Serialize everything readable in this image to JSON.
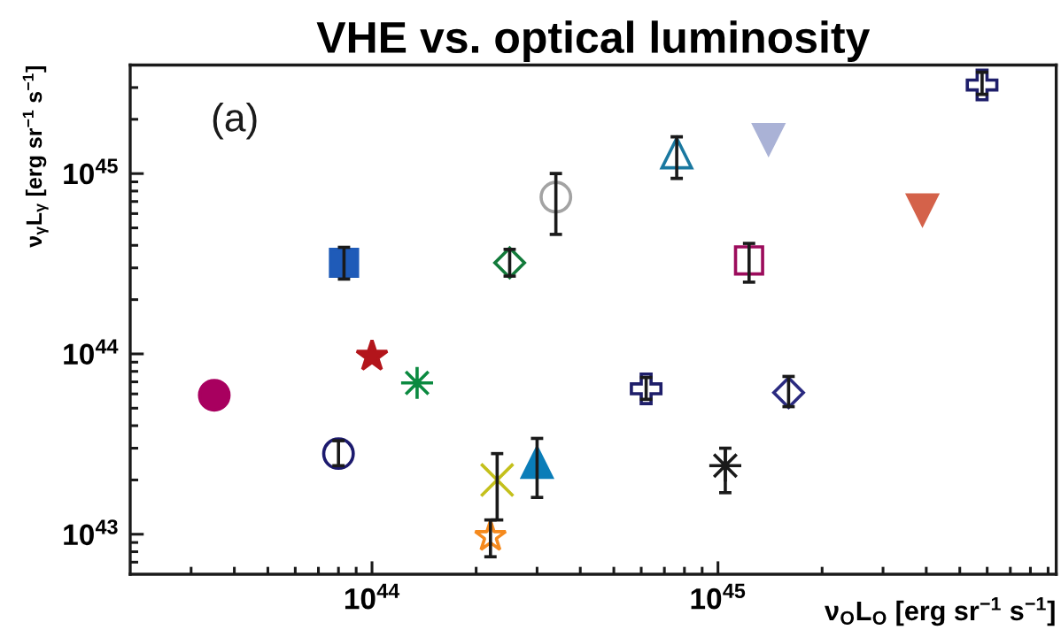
{
  "chart_data": {
    "type": "scatter",
    "title": "VHE vs. optical luminosity",
    "xlabel": "ν$_{O}$L$_{O}$ [erg sr$^{−1}$ s$^{−1}$]",
    "ylabel": "ν$_{γ}$L$_{γ}$ [erg sr$^{−1}$ s$^{−1}$]",
    "annotations": [
      "(a)"
    ],
    "log": "xy",
    "xlim": [
      2e+43,
      9.5e+45
    ],
    "ylim": [
      6e+42,
      4e+45
    ],
    "xticks": [
      {
        "value": 3e+43,
        "label": null
      },
      {
        "value": 4e+43,
        "label": null
      },
      {
        "value": 5e+43,
        "label": null
      },
      {
        "value": 6e+43,
        "label": null
      },
      {
        "value": 7e+43,
        "label": null
      },
      {
        "value": 8e+43,
        "label": null
      },
      {
        "value": 9e+43,
        "label": null
      },
      {
        "value": 1e+44,
        "label": "10$^{44}$"
      },
      {
        "value": 2e+44,
        "label": null
      },
      {
        "value": 3e+44,
        "label": null
      },
      {
        "value": 4e+44,
        "label": null
      },
      {
        "value": 5e+44,
        "label": null
      },
      {
        "value": 6e+44,
        "label": null
      },
      {
        "value": 7e+44,
        "label": null
      },
      {
        "value": 8e+44,
        "label": null
      },
      {
        "value": 9e+44,
        "label": null
      },
      {
        "value": 1e+45,
        "label": "10$^{45}$"
      },
      {
        "value": 2e+45,
        "label": null
      },
      {
        "value": 3e+45,
        "label": null
      },
      {
        "value": 4e+45,
        "label": null
      },
      {
        "value": 5e+45,
        "label": null
      },
      {
        "value": 6e+45,
        "label": null
      },
      {
        "value": 7e+45,
        "label": null
      },
      {
        "value": 8e+45,
        "label": null
      },
      {
        "value": 9e+45,
        "label": null
      }
    ],
    "yticks": [
      {
        "value": 7e+42,
        "label": null
      },
      {
        "value": 8e+42,
        "label": null
      },
      {
        "value": 9e+42,
        "label": null
      },
      {
        "value": 1e+43,
        "label": "10$^{43}$"
      },
      {
        "value": 2e+43,
        "label": null
      },
      {
        "value": 3e+43,
        "label": null
      },
      {
        "value": 4e+43,
        "label": null
      },
      {
        "value": 5e+43,
        "label": null
      },
      {
        "value": 6e+43,
        "label": null
      },
      {
        "value": 7e+43,
        "label": null
      },
      {
        "value": 8e+43,
        "label": null
      },
      {
        "value": 9e+43,
        "label": null
      },
      {
        "value": 1e+44,
        "label": "10$^{44}$"
      },
      {
        "value": 2e+44,
        "label": null
      },
      {
        "value": 3e+44,
        "label": null
      },
      {
        "value": 4e+44,
        "label": null
      },
      {
        "value": 5e+44,
        "label": null
      },
      {
        "value": 6e+44,
        "label": null
      },
      {
        "value": 7e+44,
        "label": null
      },
      {
        "value": 8e+44,
        "label": null
      },
      {
        "value": 9e+44,
        "label": null
      },
      {
        "value": 1e+45,
        "label": "10$^{45}$"
      },
      {
        "value": 2e+45,
        "label": null
      },
      {
        "value": 3e+45,
        "label": null
      }
    ],
    "series": [
      {
        "x": [
          3.5e+43
        ],
        "values": [
          5.9e+43
        ],
        "color": "#a8005f",
        "marker": "circle"
      },
      {
        "x": [
          8.3e+43
        ],
        "values": [
          3.2e+44
        ],
        "errors": [
          [
            2.6e+44,
            3.9e+44
          ]
        ],
        "color": "#1f5bb8",
        "marker": "square"
      },
      {
        "x": [
          1e+44
        ],
        "values": [
          9.7e+43
        ],
        "color": "#b3151b",
        "marker": "star"
      },
      {
        "x": [
          1.35e+44
        ],
        "values": [
          6.9e+43
        ],
        "color": "#0b8a40",
        "marker": "asterisk"
      },
      {
        "x": [
          8e+43
        ],
        "values": [
          2.8e+43
        ],
        "errors": [
          [
            2.4e+43,
            3.3e+43
          ]
        ],
        "color": "#1c1a6e",
        "marker": "circle-open"
      },
      {
        "x": [
          2.3e+44
        ],
        "values": [
          2e+43
        ],
        "errors": [
          [
            1.2e+43,
            2.8e+43
          ]
        ],
        "color": "#c4c01c",
        "marker": "x"
      },
      {
        "x": [
          3e+44
        ],
        "values": [
          2.5e+43
        ],
        "errors": [
          [
            1.6e+43,
            3.4e+43
          ]
        ],
        "color": "#0a7db8",
        "marker": "triangle-up"
      },
      {
        "x": [
          2.2e+44
        ],
        "values": [
          9.7e+42
        ],
        "errors": [
          [
            7.5e+42,
            1.2e+43
          ]
        ],
        "color": "#f58a1e",
        "marker": "star-open"
      },
      {
        "x": [
          2.5e+44
        ],
        "values": [
          3.2e+44
        ],
        "errors": [
          [
            2.7e+44,
            3.8e+44
          ]
        ],
        "color": "#127a3a",
        "marker": "diamond-open"
      },
      {
        "x": [
          3.4e+44
        ],
        "values": [
          7.4e+44
        ],
        "errors": [
          [
            4.6e+44,
            1e+45
          ]
        ],
        "color": "#a3a3a3",
        "marker": "circle-open"
      },
      {
        "x": [
          7.6e+44
        ],
        "values": [
          1.3e+45
        ],
        "errors": [
          [
            9.4e+44,
            1.6e+45
          ]
        ],
        "color": "#1a78a0",
        "marker": "triangle-up-open"
      },
      {
        "x": [
          1.4e+45
        ],
        "values": [
          1.55e+45
        ],
        "color": "#aab2d6",
        "marker": "triangle-down"
      },
      {
        "x": [
          1.23e+45
        ],
        "values": [
          3.3e+44
        ],
        "errors": [
          [
            2.5e+44,
            4.1e+44
          ]
        ],
        "color": "#9c0c5c",
        "marker": "square-open"
      },
      {
        "x": [
          3.9e+45
        ],
        "values": [
          6.3e+44
        ],
        "color": "#d4624a",
        "marker": "triangle-down"
      },
      {
        "x": [
          5.8e+45
        ],
        "values": [
          3.1e+45
        ],
        "errors": [
          [
            2.75e+45,
            3.65e+45
          ]
        ],
        "color": "#1e1e6a",
        "marker": "cross-open"
      },
      {
        "x": [
          6.2e+44
        ],
        "values": [
          6.4e+43
        ],
        "errors": [
          [
            5.6e+43,
            7.4e+43
          ]
        ],
        "color": "#1e1e6a",
        "marker": "cross-open"
      },
      {
        "x": [
          1.6e+45
        ],
        "values": [
          6.1e+43
        ],
        "errors": [
          [
            5.1e+43,
            7.5e+43
          ]
        ],
        "color": "#2a2a80",
        "marker": "diamond-open"
      },
      {
        "x": [
          1.05e+45
        ],
        "values": [
          2.4e+43
        ],
        "errors": [
          [
            1.7e+43,
            3e+43
          ]
        ],
        "color": "#1a1a1a",
        "marker": "asterisk"
      }
    ]
  }
}
